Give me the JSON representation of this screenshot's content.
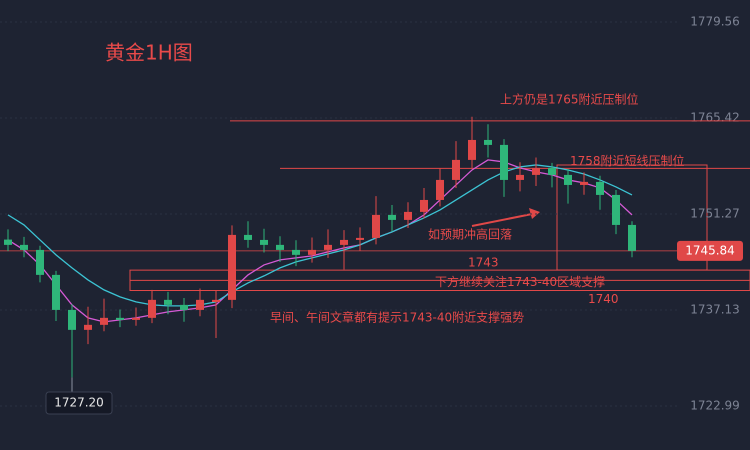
{
  "chart_data": {
    "type": "candlestick",
    "title": "黄金1H图",
    "ylim": [
      1716.5,
      1782.8
    ],
    "yticks": [
      1779.56,
      1765.42,
      1751.27,
      1737.13,
      1722.99
    ],
    "up_color": "#e04848",
    "down_color": "#2fb67a",
    "open": [
      1747.5,
      1746.72,
      1745.98,
      1742.3,
      1737.14,
      1734.2,
      1734.94,
      1735.97,
      1735.67,
      1735.97,
      1738.62,
      1737.88,
      1737.14,
      1738.3,
      1738.62,
      1748.19,
      1747.45,
      1746.72,
      1745.98,
      1745.25,
      1745.98,
      1746.72,
      1747.45,
      1747.75,
      1751.14,
      1750.4,
      1751.58,
      1753.34,
      1756.29,
      1759.24,
      1762.18,
      1761.45,
      1756.29,
      1757.03,
      1758.06,
      1757.03,
      1755.55,
      1756.0,
      1754.08,
      1749.66
    ],
    "high": [
      1749.0,
      1747.9,
      1746.6,
      1742.9,
      1738.0,
      1737.6,
      1738.8,
      1737.2,
      1737.5,
      1740.1,
      1739.8,
      1738.9,
      1740.3,
      1740.0,
      1749.6,
      1750.2,
      1749.1,
      1748.0,
      1747.4,
      1747.8,
      1749.0,
      1748.9,
      1749.3,
      1753.9,
      1752.6,
      1753.0,
      1755.1,
      1758.0,
      1762.0,
      1765.6,
      1764.5,
      1762.3,
      1758.9,
      1759.6,
      1758.8,
      1757.9,
      1757.4,
      1756.9,
      1754.8,
      1750.2
    ],
    "low": [
      1745.8,
      1744.9,
      1741.2,
      1735.5,
      1727.2,
      1732.1,
      1734.0,
      1734.6,
      1734.8,
      1735.2,
      1736.5,
      1735.4,
      1736.2,
      1733.0,
      1737.4,
      1746.3,
      1745.6,
      1744.2,
      1743.6,
      1744.1,
      1744.8,
      1743.1,
      1745.9,
      1746.8,
      1748.7,
      1749.2,
      1750.6,
      1752.4,
      1755.1,
      1758.0,
      1759.6,
      1753.8,
      1754.6,
      1755.4,
      1755.2,
      1752.8,
      1754.1,
      1751.9,
      1748.3,
      1744.9
    ],
    "close": [
      1746.72,
      1745.98,
      1742.3,
      1737.14,
      1734.2,
      1734.94,
      1735.97,
      1735.67,
      1735.97,
      1738.62,
      1737.88,
      1737.14,
      1738.62,
      1738.62,
      1748.19,
      1747.45,
      1746.72,
      1745.98,
      1745.25,
      1745.98,
      1746.72,
      1747.45,
      1747.75,
      1751.14,
      1750.4,
      1751.58,
      1753.34,
      1756.29,
      1759.24,
      1762.18,
      1761.45,
      1756.29,
      1757.03,
      1758.06,
      1757.03,
      1755.55,
      1756.0,
      1754.08,
      1749.66,
      1745.84
    ],
    "lines": [
      {
        "color": "#d65ad6",
        "values": [
          1747.45,
          1745.98,
          1743.77,
          1740.83,
          1737.88,
          1735.97,
          1735.38,
          1735.67,
          1735.97,
          1736.41,
          1736.85,
          1737.14,
          1737.44,
          1737.88,
          1740.09,
          1742.3,
          1743.77,
          1744.51,
          1744.81,
          1745.1,
          1745.69,
          1746.28,
          1746.72,
          1747.75,
          1748.63,
          1749.66,
          1751.14,
          1753.34,
          1755.55,
          1757.76,
          1759.24,
          1758.94,
          1758.06,
          1757.47,
          1757.03,
          1756.29,
          1755.85,
          1755.11,
          1753.34,
          1751.14
        ]
      },
      {
        "color": "#3cc4d4",
        "values": [
          1751.14,
          1749.66,
          1747.45,
          1745.25,
          1743.33,
          1741.56,
          1740.09,
          1739.06,
          1738.32,
          1737.88,
          1737.73,
          1737.73,
          1737.88,
          1738.32,
          1739.8,
          1741.12,
          1742.15,
          1743.33,
          1744.21,
          1744.81,
          1745.39,
          1745.98,
          1746.72,
          1747.75,
          1748.63,
          1749.66,
          1750.69,
          1751.87,
          1753.34,
          1754.82,
          1756.29,
          1757.47,
          1758.21,
          1758.5,
          1758.21,
          1757.76,
          1757.17,
          1756.29,
          1755.26,
          1754.08
        ]
      }
    ],
    "last_price": 1745.84,
    "low_marker": {
      "value": 1727.2,
      "label": "1727.20"
    },
    "resistance": [
      {
        "label": "上方仍是1765附近压制位",
        "value": 1765
      },
      {
        "label": "1758附近短线压制位",
        "value": 1758
      }
    ],
    "support_zone": {
      "label": "下方继续关注1743-40区域支撑",
      "top": 1743,
      "bottom": 1740
    },
    "annotations": [
      "如预期冲高回落",
      "早间、午间文章都有提示1743-40附近支撑强势"
    ]
  }
}
